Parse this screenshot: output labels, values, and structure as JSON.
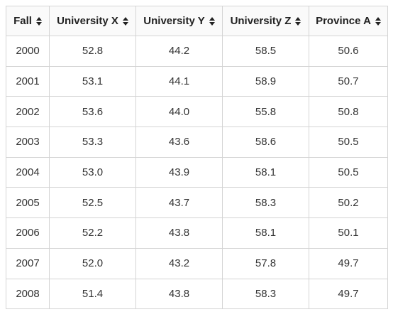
{
  "table": {
    "columns": [
      {
        "label": "Fall"
      },
      {
        "label": "University X"
      },
      {
        "label": "University Y"
      },
      {
        "label": "University Z"
      },
      {
        "label": "Province A"
      }
    ],
    "rows": [
      [
        "2000",
        "52.8",
        "44.2",
        "58.5",
        "50.6"
      ],
      [
        "2001",
        "53.1",
        "44.1",
        "58.9",
        "50.7"
      ],
      [
        "2002",
        "53.6",
        "44.0",
        "55.8",
        "50.8"
      ],
      [
        "2003",
        "53.3",
        "43.6",
        "58.6",
        "50.5"
      ],
      [
        "2004",
        "53.0",
        "43.9",
        "58.1",
        "50.5"
      ],
      [
        "2005",
        "52.5",
        "43.7",
        "58.3",
        "50.2"
      ],
      [
        "2006",
        "52.2",
        "43.8",
        "58.1",
        "50.1"
      ],
      [
        "2007",
        "52.0",
        "43.2",
        "57.8",
        "49.7"
      ],
      [
        "2008",
        "51.4",
        "43.8",
        "58.3",
        "49.7"
      ]
    ]
  }
}
